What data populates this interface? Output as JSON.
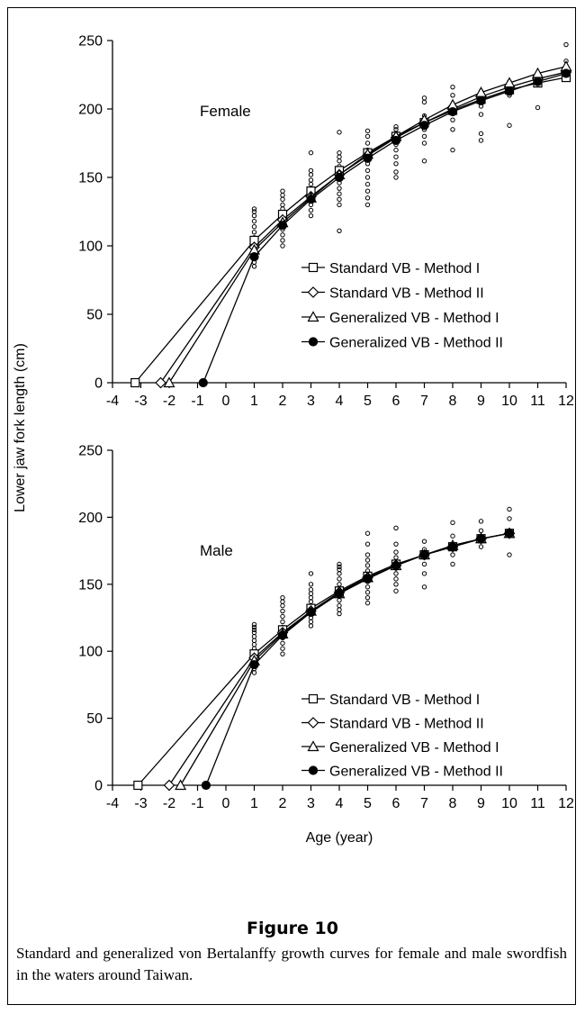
{
  "figure": {
    "label": "Figure 10",
    "caption": "Standard and generalized von Bertalanffy growth curves for female and male swordfish in the waters around Taiwan."
  },
  "chart_data": [
    {
      "type": "line",
      "panel_label": "Female",
      "xlim": [
        -4,
        12
      ],
      "ylim": [
        0,
        250
      ],
      "x_ticks": [
        "-4",
        "-3",
        "-2",
        "-1",
        "0",
        "1",
        "2",
        "3",
        "4",
        "5",
        "6",
        "7",
        "8",
        "9",
        "10",
        "11",
        "12"
      ],
      "y_ticks": [
        "0",
        "50",
        "100",
        "150",
        "200",
        "250"
      ],
      "legend_position": "right",
      "series": [
        {
          "name": "Standard VB - Method I",
          "marker": "square",
          "x": [
            -3.2,
            1,
            2,
            3,
            4,
            5,
            6,
            7,
            8,
            9,
            10,
            11,
            12
          ],
          "y": [
            0,
            104,
            123,
            140,
            155,
            168,
            180,
            190,
            199,
            207,
            214,
            219,
            223
          ]
        },
        {
          "name": "Standard VB - Method II",
          "marker": "diamond",
          "x": [
            -2.3,
            1,
            2,
            3,
            4,
            5,
            6,
            7,
            8,
            9,
            10,
            11,
            12
          ],
          "y": [
            0,
            99,
            119,
            136,
            152,
            166,
            179,
            190,
            200,
            209,
            216,
            222,
            227
          ]
        },
        {
          "name": "Generalized VB - Method I",
          "marker": "triangle",
          "x": [
            -2.0,
            1,
            2,
            3,
            4,
            5,
            6,
            7,
            8,
            9,
            10,
            11,
            12
          ],
          "y": [
            0,
            97,
            117,
            135,
            152,
            167,
            180,
            192,
            203,
            212,
            219,
            226,
            231
          ]
        },
        {
          "name": "Generalized VB - Method II",
          "marker": "circle",
          "x": [
            -0.8,
            1,
            2,
            3,
            4,
            5,
            6,
            7,
            8,
            9,
            10,
            11,
            12
          ],
          "y": [
            0,
            92,
            115,
            134,
            150,
            164,
            177,
            188,
            198,
            206,
            213,
            220,
            226
          ]
        }
      ],
      "observations": {
        "x": [
          1,
          1,
          1,
          1,
          1,
          1,
          1,
          1,
          1,
          1,
          1,
          1,
          1,
          1,
          2,
          2,
          2,
          2,
          2,
          2,
          2,
          2,
          2,
          2,
          2,
          2,
          3,
          3,
          3,
          3,
          3,
          3,
          3,
          3,
          3,
          3,
          3,
          3,
          4,
          4,
          4,
          4,
          4,
          4,
          4,
          4,
          4,
          4,
          4,
          4,
          4,
          5,
          5,
          5,
          5,
          5,
          5,
          5,
          5,
          5,
          5,
          5,
          5,
          6,
          6,
          6,
          6,
          6,
          6,
          6,
          6,
          6,
          6,
          7,
          7,
          7,
          7,
          7,
          7,
          7,
          7,
          8,
          8,
          8,
          8,
          8,
          8,
          8,
          9,
          9,
          9,
          9,
          9,
          9,
          10,
          10,
          10,
          10,
          11,
          11,
          12,
          12,
          12
        ],
        "y": [
          85,
          88,
          91,
          94,
          97,
          100,
          103,
          106,
          110,
          114,
          118,
          122,
          125,
          127,
          100,
          104,
          108,
          112,
          116,
          120,
          124,
          127,
          130,
          134,
          137,
          140,
          122,
          126,
          130,
          133,
          136,
          139,
          142,
          145,
          148,
          152,
          155,
          168,
          111,
          130,
          134,
          138,
          142,
          146,
          150,
          154,
          158,
          162,
          165,
          168,
          183,
          130,
          135,
          140,
          145,
          150,
          155,
          160,
          165,
          170,
          175,
          180,
          184,
          150,
          154,
          160,
          165,
          170,
          174,
          178,
          182,
          185,
          187,
          162,
          175,
          180,
          185,
          190,
          195,
          205,
          208,
          170,
          185,
          192,
          198,
          202,
          210,
          216,
          177,
          182,
          196,
          202,
          208,
          213,
          188,
          210,
          216,
          220,
          201,
          224,
          226,
          235,
          247
        ]
      }
    },
    {
      "type": "line",
      "panel_label": "Male",
      "xlabel": "Age (year)",
      "xlim": [
        -4,
        12
      ],
      "ylim": [
        0,
        250
      ],
      "x_ticks": [
        "-4",
        "-3",
        "-2",
        "-1",
        "0",
        "1",
        "2",
        "3",
        "4",
        "5",
        "6",
        "7",
        "8",
        "9",
        "10",
        "11",
        "12"
      ],
      "y_ticks": [
        "0",
        "50",
        "100",
        "150",
        "200",
        "250"
      ],
      "legend_position": "bottom-right",
      "series": [
        {
          "name": "Standard VB - Method I",
          "marker": "square",
          "x": [
            -3.1,
            1,
            2,
            3,
            4,
            5,
            6,
            7,
            8,
            9,
            10
          ],
          "y": [
            0,
            98,
            116,
            132,
            145,
            156,
            165,
            172,
            178,
            184,
            188
          ]
        },
        {
          "name": "Standard VB - Method II",
          "marker": "diamond",
          "x": [
            -2.0,
            1,
            2,
            3,
            4,
            5,
            6,
            7,
            8,
            9,
            10
          ],
          "y": [
            0,
            95,
            114,
            130,
            144,
            155,
            164,
            172,
            178,
            184,
            188
          ]
        },
        {
          "name": "Generalized VB - Method I",
          "marker": "triangle",
          "x": [
            -1.6,
            1,
            2,
            3,
            4,
            5,
            6,
            7,
            8,
            9,
            10
          ],
          "y": [
            0,
            93,
            113,
            130,
            143,
            155,
            164,
            172,
            179,
            184,
            188
          ]
        },
        {
          "name": "Generalized VB - Method II",
          "marker": "circle",
          "x": [
            -0.7,
            1,
            2,
            3,
            4,
            5,
            6,
            7,
            8,
            9,
            10
          ],
          "y": [
            0,
            90,
            112,
            129,
            143,
            154,
            164,
            172,
            178,
            184,
            188
          ]
        }
      ],
      "observations": {
        "x": [
          1,
          1,
          1,
          1,
          1,
          1,
          1,
          1,
          1,
          1,
          1,
          1,
          1,
          1,
          2,
          2,
          2,
          2,
          2,
          2,
          2,
          2,
          2,
          2,
          2,
          2,
          3,
          3,
          3,
          3,
          3,
          3,
          3,
          3,
          3,
          3,
          3,
          3,
          4,
          4,
          4,
          4,
          4,
          4,
          4,
          4,
          4,
          4,
          4,
          4,
          5,
          5,
          5,
          5,
          5,
          5,
          5,
          5,
          5,
          5,
          5,
          5,
          6,
          6,
          6,
          6,
          6,
          6,
          6,
          6,
          6,
          6,
          7,
          7,
          7,
          7,
          7,
          7,
          8,
          8,
          8,
          8,
          8,
          9,
          9,
          9,
          9,
          10,
          10,
          10,
          10
        ],
        "y": [
          84,
          87,
          90,
          93,
          96,
          99,
          102,
          105,
          108,
          111,
          114,
          116,
          118,
          120,
          98,
          102,
          106,
          110,
          114,
          118,
          122,
          126,
          130,
          134,
          137,
          140,
          119,
          122,
          125,
          128,
          131,
          134,
          137,
          140,
          143,
          146,
          150,
          158,
          128,
          131,
          134,
          138,
          142,
          146,
          150,
          154,
          158,
          161,
          163,
          165,
          136,
          140,
          144,
          148,
          152,
          156,
          160,
          164,
          168,
          172,
          180,
          188,
          145,
          150,
          154,
          158,
          162,
          166,
          170,
          174,
          180,
          192,
          148,
          158,
          165,
          170,
          176,
          182,
          165,
          172,
          178,
          186,
          196,
          178,
          183,
          190,
          197,
          172,
          190,
          199,
          206
        ]
      }
    }
  ],
  "shared_ylabel": "Lower jaw fork length (cm)"
}
